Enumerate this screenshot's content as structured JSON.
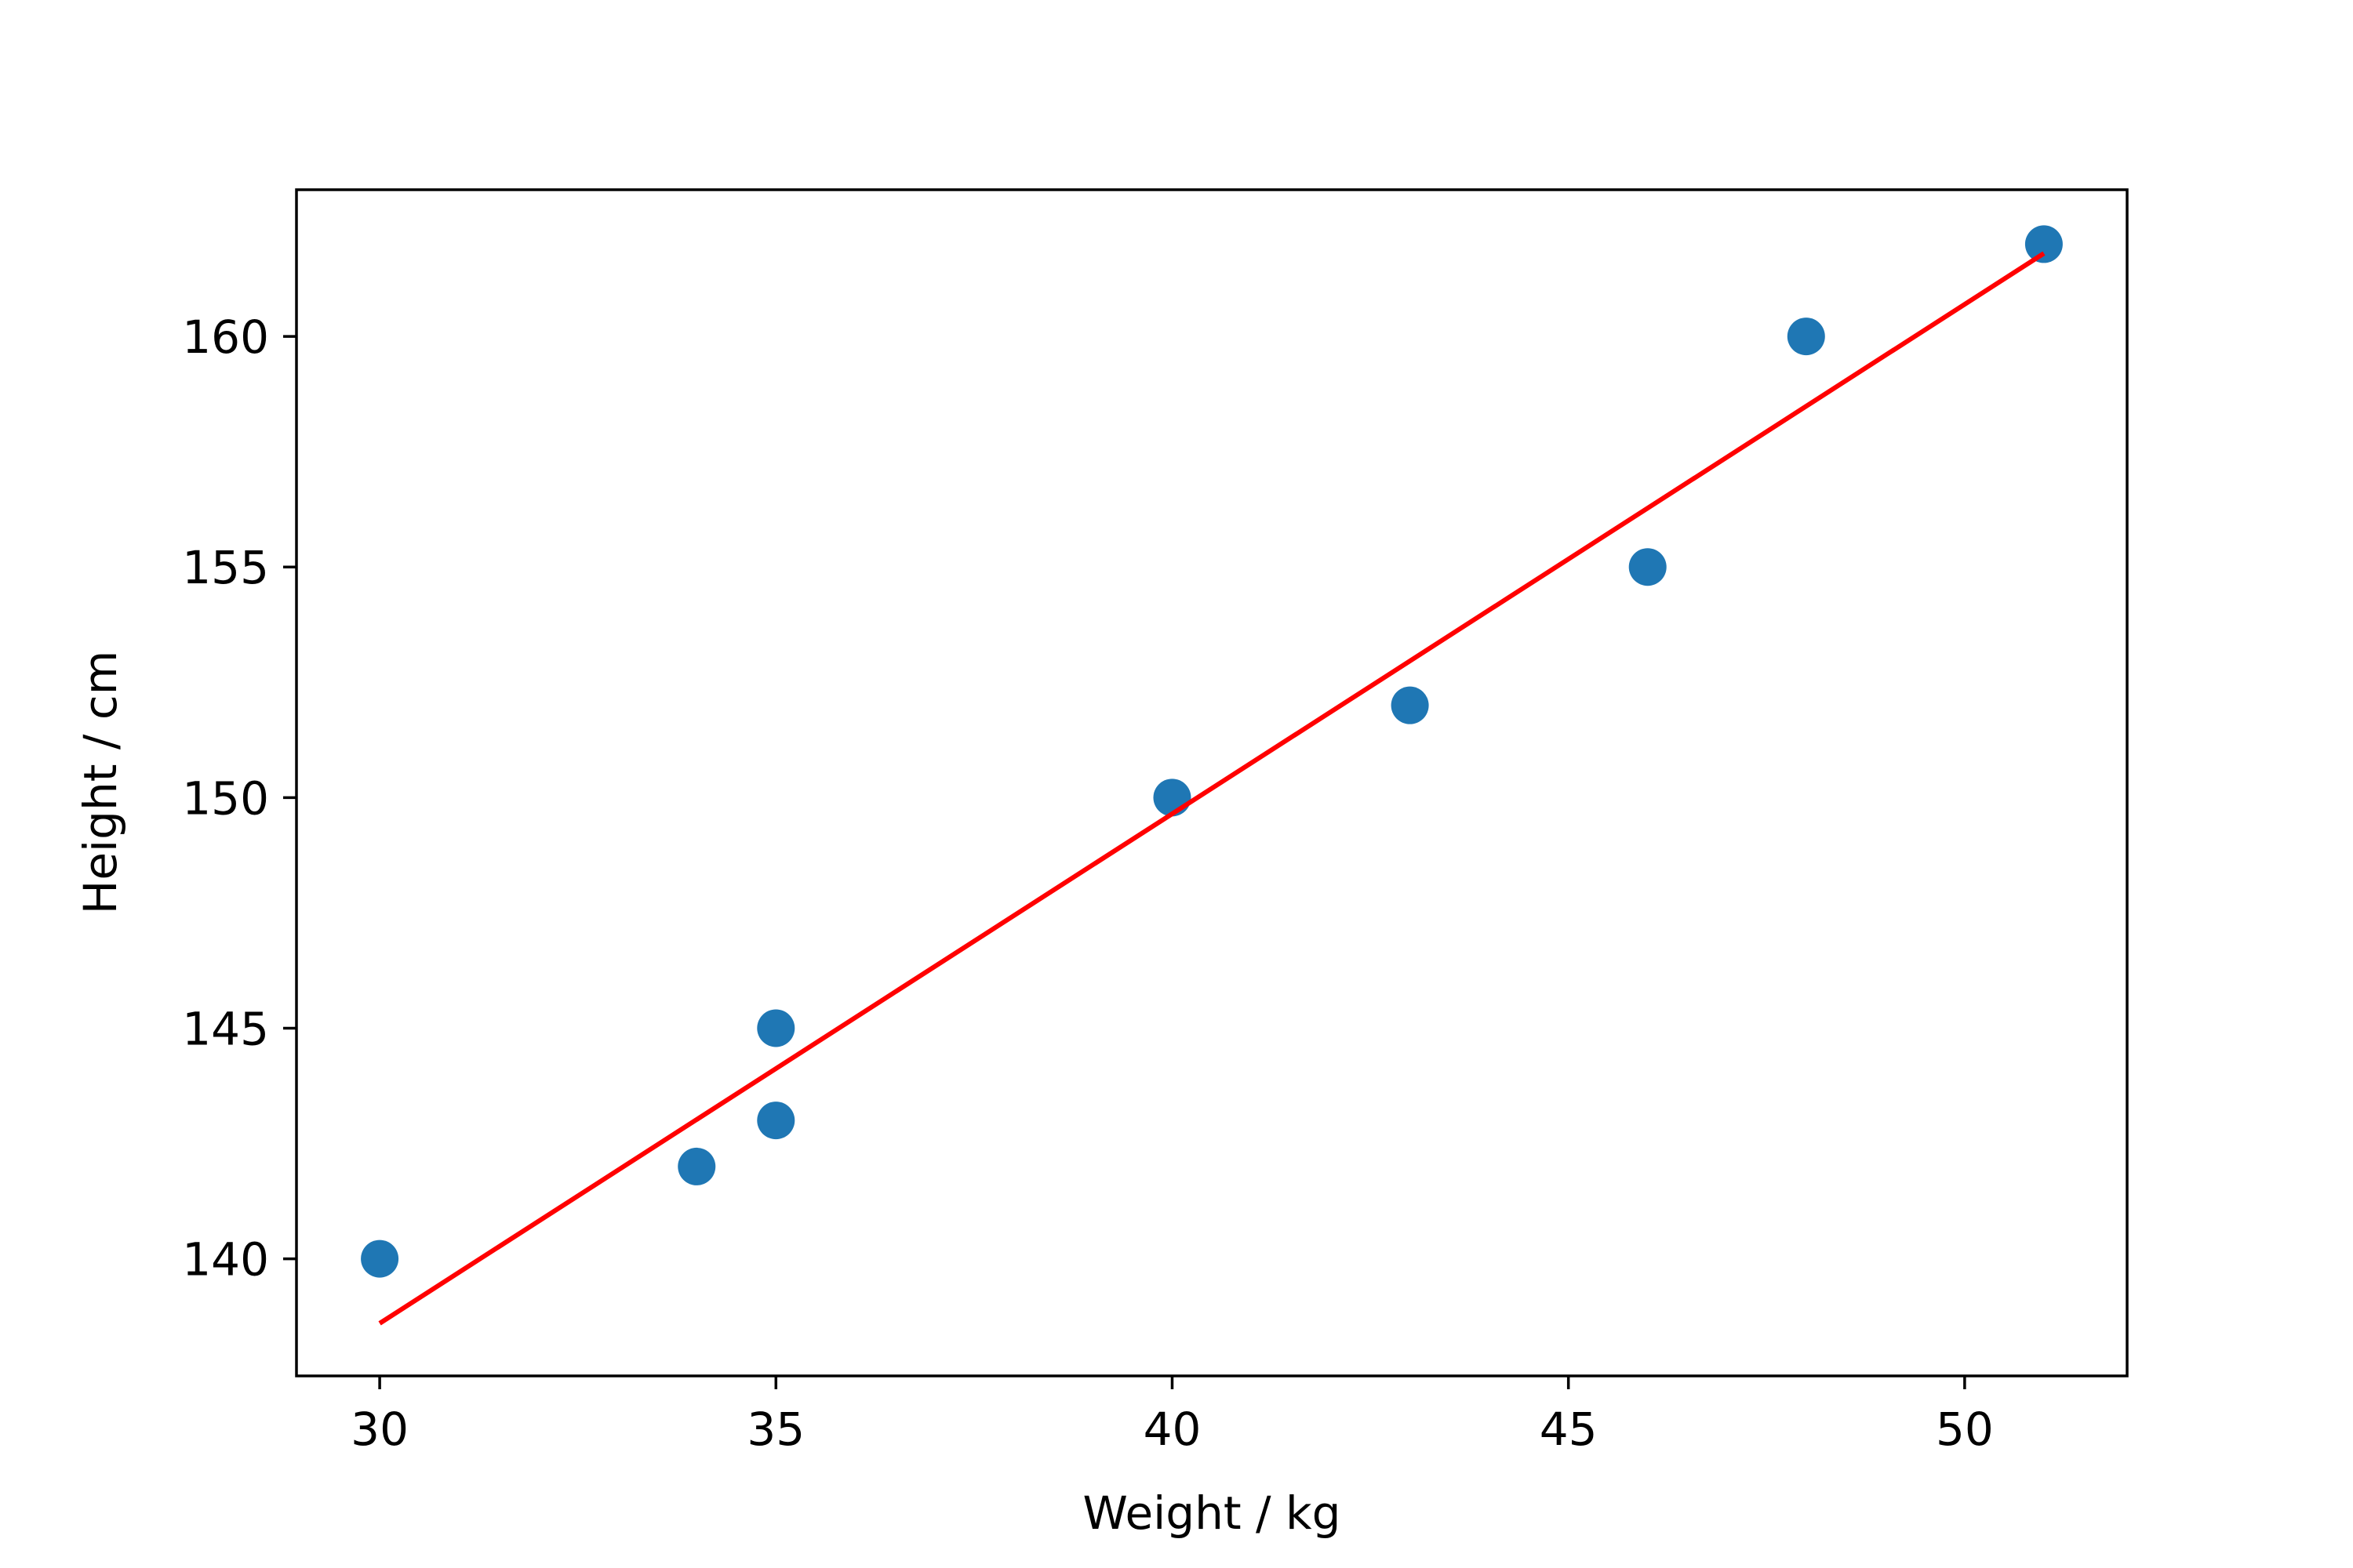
{
  "chart_data": {
    "type": "scatter",
    "title": "",
    "xlabel": "Weight / kg",
    "ylabel": "Height / cm",
    "xlim": [
      28.95,
      52.05
    ],
    "ylim": [
      137.46,
      163.18
    ],
    "grid": false,
    "legend": "none",
    "x_ticks": [
      30,
      35,
      40,
      45,
      50
    ],
    "y_ticks": [
      140,
      145,
      150,
      155,
      160
    ],
    "series": [
      {
        "type": "scatter",
        "color": "#1f77b4",
        "x": [
          30,
          34,
          35,
          35,
          40,
          43,
          46,
          48,
          51
        ],
        "y": [
          140,
          142,
          143,
          145,
          150,
          152,
          155,
          160,
          162
        ]
      },
      {
        "type": "line",
        "color": "#ff0000",
        "x": [
          30,
          51
        ],
        "y": [
          138.6,
          161.8
        ]
      }
    ]
  }
}
